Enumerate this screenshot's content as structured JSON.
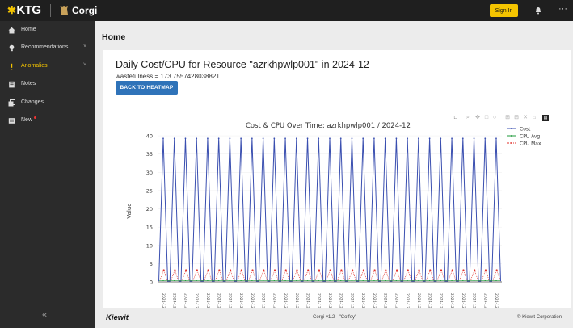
{
  "topbar": {
    "brand": "KTG",
    "app_name": "Corgi",
    "signin_label": "Sign In",
    "kebab": "···"
  },
  "sidebar": {
    "items": [
      {
        "label": "Home",
        "icon": "home-icon"
      },
      {
        "label": "Recommendations",
        "icon": "lightbulb-icon",
        "chevron": "˅"
      },
      {
        "label": "Anomalies",
        "icon": "exclamation-icon",
        "chevron": "˅",
        "active": true
      },
      {
        "label": "Notes",
        "icon": "notes-icon"
      },
      {
        "label": "Changes",
        "icon": "changes-icon"
      },
      {
        "label": "New",
        "icon": "new-icon"
      }
    ],
    "collapse_label": "«"
  },
  "main": {
    "page_title": "Home",
    "card_title": "Daily Cost/CPU for Resource \"azrkhpwlp001\" in 2024-12",
    "subtitle": "wastefulness = 173.7557428038821",
    "back_button": "BACK TO HEATMAP"
  },
  "footer": {
    "logo": "Kiewit",
    "version": "Corgi v1.2 - \"Coffey\"",
    "copyright": "© Kiewit Corporation"
  },
  "colors": {
    "accent": "#f4c400",
    "button": "#2f73b9",
    "cost": "#3a4fb0",
    "cpu_avg": "#1e9a3a",
    "cpu_max": "#e0312b"
  },
  "chart_data": {
    "type": "line",
    "title": "Cost & CPU Over Time: azrkhpwlp001 / 2024-12",
    "xlabel": "",
    "ylabel": "Value",
    "ylim": [
      0,
      42
    ],
    "yticks": [
      0,
      5,
      10,
      15,
      20,
      25,
      30,
      35,
      40
    ],
    "xtick_prefix": "2024-",
    "legend_position": "top-right",
    "grid": true,
    "series": [
      {
        "name": "Cost",
        "color": "#3a4fb0",
        "pattern": "daily spikes",
        "peak": 39.3,
        "base": 0.2,
        "spikes": 31
      },
      {
        "name": "CPU Avg",
        "color": "#1e9a3a",
        "value": 0.4
      },
      {
        "name": "CPU Max",
        "color": "#e0312b",
        "peak": 3.2,
        "base": 0.5
      }
    ]
  }
}
